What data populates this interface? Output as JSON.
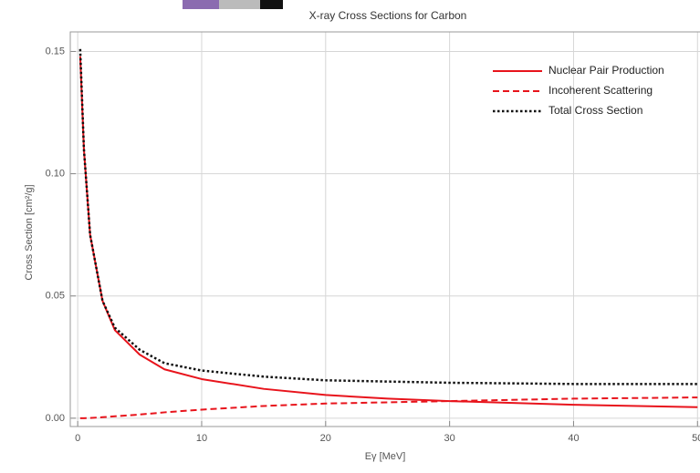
{
  "chart_data": {
    "type": "line",
    "title": "X-ray Cross Sections for Carbon",
    "x_label": "Eγ [MeV]",
    "y_label": "Cross Section [cm²/g]",
    "x": [
      0.2,
      0.5,
      1,
      2,
      3,
      5,
      7,
      10,
      15,
      20,
      25,
      30,
      40,
      50
    ],
    "series": [
      {
        "name": "Nuclear Pair Production",
        "color": "#e8141c",
        "dash": "solid",
        "values": [
          0.148,
          0.11,
          0.075,
          0.048,
          0.036,
          0.026,
          0.02,
          0.016,
          0.012,
          0.0095,
          0.008,
          0.007,
          0.0055,
          0.0045
        ]
      },
      {
        "name": "Incoherent Scattering",
        "color": "#e8141c",
        "dash": "dashed",
        "values": [
          0,
          0,
          0.0001,
          0.0004,
          0.0008,
          0.0015,
          0.0024,
          0.0035,
          0.005,
          0.006,
          0.0065,
          0.007,
          0.008,
          0.0085
        ]
      },
      {
        "name": "Total Cross Section",
        "color": "#111111",
        "dash": "dotted",
        "values": [
          0.151,
          0.11,
          0.075,
          0.048,
          0.037,
          0.028,
          0.0225,
          0.0195,
          0.017,
          0.0155,
          0.015,
          0.0145,
          0.014,
          0.014
        ]
      }
    ],
    "xlim": [
      -0.6,
      50.2
    ],
    "ylim": [
      -0.0034,
      0.158
    ],
    "xticks": [
      0,
      10,
      20,
      30,
      40,
      50
    ],
    "yticks": [
      {
        "value": 0,
        "label": "0.00"
      },
      {
        "value": 0.05,
        "label": "0.05"
      },
      {
        "value": 0.1,
        "label": "0.10"
      },
      {
        "value": 0.15,
        "label": "0.15"
      }
    ],
    "grid": true,
    "legend": "top-right"
  }
}
